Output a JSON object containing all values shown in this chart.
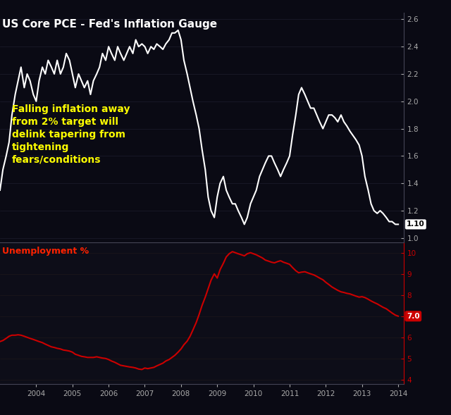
{
  "background_color": "#0a0a14",
  "panel1_bg": "#0a0a14",
  "panel2_bg": "#0d0d18",
  "title": "US Core PCE - Fed's Inflation Gauge",
  "title_color": "#ffffff",
  "title_fontsize": 11,
  "annotation_text": "Falling inflation away\nfrom 2% target will\ndelink tapering from\ntightening\nfears/conditions",
  "annotation_color": "#ffff00",
  "annotation_fontsize": 10,
  "pce_color": "#ffffff",
  "pce_linewidth": 1.5,
  "pce_ylim": [
    0.97,
    2.65
  ],
  "pce_yticks": [
    1.0,
    1.2,
    1.4,
    1.6,
    1.8,
    2.0,
    2.2,
    2.4,
    2.6
  ],
  "pce_last_value": 1.1,
  "unemp_color": "#cc0000",
  "unemp_linewidth": 1.5,
  "unemp_ylim": [
    3.8,
    10.5
  ],
  "unemp_yticks": [
    4.0,
    5.0,
    6.0,
    7.0,
    8.0,
    9.0,
    10.0
  ],
  "unemp_last_value": 7.0,
  "unemp_label": "Unemployment %",
  "unemp_label_color": "#ff2200",
  "axis_color": "#444455",
  "tick_color": "#aaaaaa",
  "tick_fontsize": 7.5,
  "pce_data": {
    "dates": [
      2003.0,
      2003.08,
      2003.17,
      2003.25,
      2003.33,
      2003.42,
      2003.5,
      2003.58,
      2003.67,
      2003.75,
      2003.83,
      2003.92,
      2004.0,
      2004.08,
      2004.17,
      2004.25,
      2004.33,
      2004.42,
      2004.5,
      2004.58,
      2004.67,
      2004.75,
      2004.83,
      2004.92,
      2005.0,
      2005.08,
      2005.17,
      2005.25,
      2005.33,
      2005.42,
      2005.5,
      2005.58,
      2005.67,
      2005.75,
      2005.83,
      2005.92,
      2006.0,
      2006.08,
      2006.17,
      2006.25,
      2006.33,
      2006.42,
      2006.5,
      2006.58,
      2006.67,
      2006.75,
      2006.83,
      2006.92,
      2007.0,
      2007.08,
      2007.17,
      2007.25,
      2007.33,
      2007.42,
      2007.5,
      2007.58,
      2007.67,
      2007.75,
      2007.83,
      2007.92,
      2008.0,
      2008.08,
      2008.17,
      2008.25,
      2008.33,
      2008.42,
      2008.5,
      2008.58,
      2008.67,
      2008.75,
      2008.83,
      2008.92,
      2009.0,
      2009.08,
      2009.17,
      2009.25,
      2009.33,
      2009.42,
      2009.5,
      2009.58,
      2009.67,
      2009.75,
      2009.83,
      2009.92,
      2010.0,
      2010.08,
      2010.17,
      2010.25,
      2010.33,
      2010.42,
      2010.5,
      2010.58,
      2010.67,
      2010.75,
      2010.83,
      2010.92,
      2011.0,
      2011.08,
      2011.17,
      2011.25,
      2011.33,
      2011.42,
      2011.5,
      2011.58,
      2011.67,
      2011.75,
      2011.83,
      2011.92,
      2012.0,
      2012.08,
      2012.17,
      2012.25,
      2012.33,
      2012.42,
      2012.5,
      2012.58,
      2012.67,
      2012.75,
      2012.83,
      2012.92,
      2013.0,
      2013.08,
      2013.17,
      2013.25,
      2013.33,
      2013.42,
      2013.5,
      2013.58,
      2013.67,
      2013.75,
      2013.83,
      2013.92,
      2014.0
    ],
    "values": [
      1.35,
      1.5,
      1.6,
      1.7,
      1.9,
      2.05,
      2.15,
      2.25,
      2.1,
      2.2,
      2.15,
      2.05,
      2.0,
      2.15,
      2.25,
      2.2,
      2.3,
      2.25,
      2.2,
      2.3,
      2.2,
      2.25,
      2.35,
      2.3,
      2.2,
      2.1,
      2.2,
      2.15,
      2.1,
      2.15,
      2.05,
      2.15,
      2.2,
      2.25,
      2.35,
      2.3,
      2.4,
      2.35,
      2.3,
      2.4,
      2.35,
      2.3,
      2.35,
      2.4,
      2.35,
      2.45,
      2.4,
      2.42,
      2.4,
      2.35,
      2.4,
      2.38,
      2.42,
      2.4,
      2.38,
      2.42,
      2.45,
      2.5,
      2.5,
      2.52,
      2.45,
      2.3,
      2.2,
      2.1,
      2.0,
      1.9,
      1.8,
      1.65,
      1.5,
      1.3,
      1.2,
      1.15,
      1.3,
      1.4,
      1.45,
      1.35,
      1.3,
      1.25,
      1.25,
      1.2,
      1.15,
      1.1,
      1.15,
      1.25,
      1.3,
      1.35,
      1.45,
      1.5,
      1.55,
      1.6,
      1.6,
      1.55,
      1.5,
      1.45,
      1.5,
      1.55,
      1.6,
      1.75,
      1.9,
      2.05,
      2.1,
      2.05,
      2.0,
      1.95,
      1.95,
      1.9,
      1.85,
      1.8,
      1.85,
      1.9,
      1.9,
      1.88,
      1.85,
      1.9,
      1.85,
      1.82,
      1.78,
      1.75,
      1.72,
      1.68,
      1.6,
      1.45,
      1.35,
      1.25,
      1.2,
      1.18,
      1.2,
      1.18,
      1.15,
      1.12,
      1.12,
      1.1,
      1.1
    ]
  },
  "unemp_data": {
    "dates": [
      2003.0,
      2003.08,
      2003.17,
      2003.25,
      2003.33,
      2003.42,
      2003.5,
      2003.58,
      2003.67,
      2003.75,
      2003.83,
      2003.92,
      2004.0,
      2004.08,
      2004.17,
      2004.25,
      2004.33,
      2004.42,
      2004.5,
      2004.58,
      2004.67,
      2004.75,
      2004.83,
      2004.92,
      2005.0,
      2005.08,
      2005.17,
      2005.25,
      2005.33,
      2005.42,
      2005.5,
      2005.58,
      2005.67,
      2005.75,
      2005.83,
      2005.92,
      2006.0,
      2006.08,
      2006.17,
      2006.25,
      2006.33,
      2006.42,
      2006.5,
      2006.58,
      2006.67,
      2006.75,
      2006.83,
      2006.92,
      2007.0,
      2007.08,
      2007.17,
      2007.25,
      2007.33,
      2007.42,
      2007.5,
      2007.58,
      2007.67,
      2007.75,
      2007.83,
      2007.92,
      2008.0,
      2008.08,
      2008.17,
      2008.25,
      2008.33,
      2008.42,
      2008.5,
      2008.58,
      2008.67,
      2008.75,
      2008.83,
      2008.92,
      2009.0,
      2009.08,
      2009.17,
      2009.25,
      2009.33,
      2009.42,
      2009.5,
      2009.58,
      2009.67,
      2009.75,
      2009.83,
      2009.92,
      2010.0,
      2010.08,
      2010.17,
      2010.25,
      2010.33,
      2010.42,
      2010.5,
      2010.58,
      2010.67,
      2010.75,
      2010.83,
      2010.92,
      2011.0,
      2011.08,
      2011.17,
      2011.25,
      2011.33,
      2011.42,
      2011.5,
      2011.58,
      2011.67,
      2011.75,
      2011.83,
      2011.92,
      2012.0,
      2012.08,
      2012.17,
      2012.25,
      2012.33,
      2012.42,
      2012.5,
      2012.58,
      2012.67,
      2012.75,
      2012.83,
      2012.92,
      2013.0,
      2013.08,
      2013.17,
      2013.25,
      2013.33,
      2013.42,
      2013.5,
      2013.58,
      2013.67,
      2013.75,
      2013.83,
      2013.92,
      2014.0
    ],
    "values": [
      5.8,
      5.85,
      5.95,
      6.05,
      6.1,
      6.1,
      6.12,
      6.1,
      6.05,
      6.0,
      5.95,
      5.9,
      5.85,
      5.8,
      5.75,
      5.68,
      5.62,
      5.55,
      5.52,
      5.48,
      5.45,
      5.4,
      5.38,
      5.35,
      5.3,
      5.2,
      5.15,
      5.1,
      5.08,
      5.05,
      5.05,
      5.05,
      5.08,
      5.05,
      5.02,
      5.0,
      4.95,
      4.88,
      4.82,
      4.75,
      4.68,
      4.65,
      4.62,
      4.6,
      4.58,
      4.55,
      4.5,
      4.48,
      4.55,
      4.52,
      4.55,
      4.58,
      4.65,
      4.72,
      4.78,
      4.88,
      4.95,
      5.05,
      5.15,
      5.3,
      5.45,
      5.65,
      5.82,
      6.05,
      6.35,
      6.7,
      7.08,
      7.5,
      7.9,
      8.3,
      8.7,
      9.0,
      8.8,
      9.2,
      9.5,
      9.8,
      9.95,
      10.05,
      10.0,
      9.95,
      9.9,
      9.85,
      9.95,
      10.0,
      9.95,
      9.9,
      9.82,
      9.75,
      9.65,
      9.6,
      9.55,
      9.52,
      9.58,
      9.62,
      9.55,
      9.5,
      9.45,
      9.3,
      9.15,
      9.05,
      9.08,
      9.1,
      9.05,
      9.0,
      8.95,
      8.88,
      8.8,
      8.72,
      8.6,
      8.5,
      8.38,
      8.3,
      8.22,
      8.15,
      8.12,
      8.08,
      8.05,
      8.0,
      7.95,
      7.9,
      7.92,
      7.88,
      7.8,
      7.72,
      7.65,
      7.58,
      7.5,
      7.42,
      7.35,
      7.25,
      7.15,
      7.05,
      7.0
    ]
  },
  "xlim": [
    2003.0,
    2014.15
  ],
  "xticks": [
    2004,
    2005,
    2006,
    2007,
    2008,
    2009,
    2010,
    2011,
    2012,
    2013,
    2014
  ]
}
